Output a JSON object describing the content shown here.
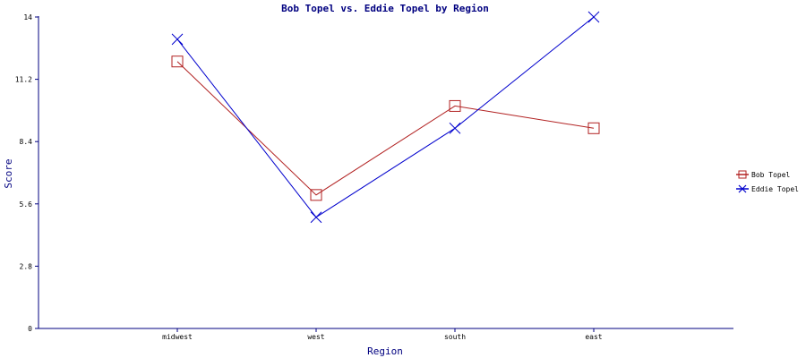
{
  "chart_data": {
    "type": "line",
    "title": "Bob Topel vs. Eddie Topel by Region",
    "xlabel": "Region",
    "ylabel": "Score",
    "categories": [
      "midwest",
      "west",
      "south",
      "east"
    ],
    "ylim": [
      0,
      14
    ],
    "yticks": [
      "0",
      "2.8",
      "5.6",
      "8.4",
      "11.2",
      "14"
    ],
    "grid": false,
    "legend_position": "right",
    "series": [
      {
        "name": "Bob Topel",
        "values": [
          12,
          6,
          10,
          9
        ],
        "color": "#b22222",
        "marker": "square"
      },
      {
        "name": "Eddie Topel",
        "values": [
          13,
          5,
          9,
          14
        ],
        "color": "#0000cd",
        "marker": "x"
      }
    ]
  }
}
